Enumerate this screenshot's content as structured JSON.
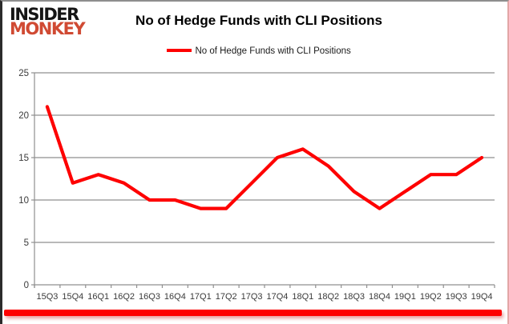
{
  "logo": {
    "line1": "INSIDER",
    "line2": "MONKEY",
    "accent_color": "#d04a33"
  },
  "header": {
    "title": "No of Hedge Funds with CLI Positions"
  },
  "legend": {
    "label": "No of Hedge Funds with CLI Positions",
    "swatch_color": "#fe0000"
  },
  "chart_data": {
    "type": "line",
    "title": "No of Hedge Funds with CLI Positions",
    "categories": [
      "15Q3",
      "15Q4",
      "16Q1",
      "16Q2",
      "16Q3",
      "16Q4",
      "17Q1",
      "17Q2",
      "17Q3",
      "17Q4",
      "18Q1",
      "18Q2",
      "18Q3",
      "18Q4",
      "19Q1",
      "19Q2",
      "19Q3",
      "19Q4"
    ],
    "series": [
      {
        "name": "No of Hedge Funds with CLI Positions",
        "values": [
          21,
          12,
          13,
          12,
          10,
          10,
          9,
          9,
          12,
          15,
          16,
          14,
          11,
          9,
          11,
          13,
          13,
          15
        ]
      }
    ],
    "xlabel": "",
    "ylabel": "",
    "ylim": [
      0,
      25
    ],
    "y_ticks": [
      0,
      5,
      10,
      15,
      20,
      25
    ],
    "grid": true,
    "legend_position": "top-center",
    "line_color": "#fe0000",
    "grid_color": "#8f8f8f",
    "axis_text_color": "#3a3a3a"
  },
  "accent_bar_color": "#fe0101"
}
